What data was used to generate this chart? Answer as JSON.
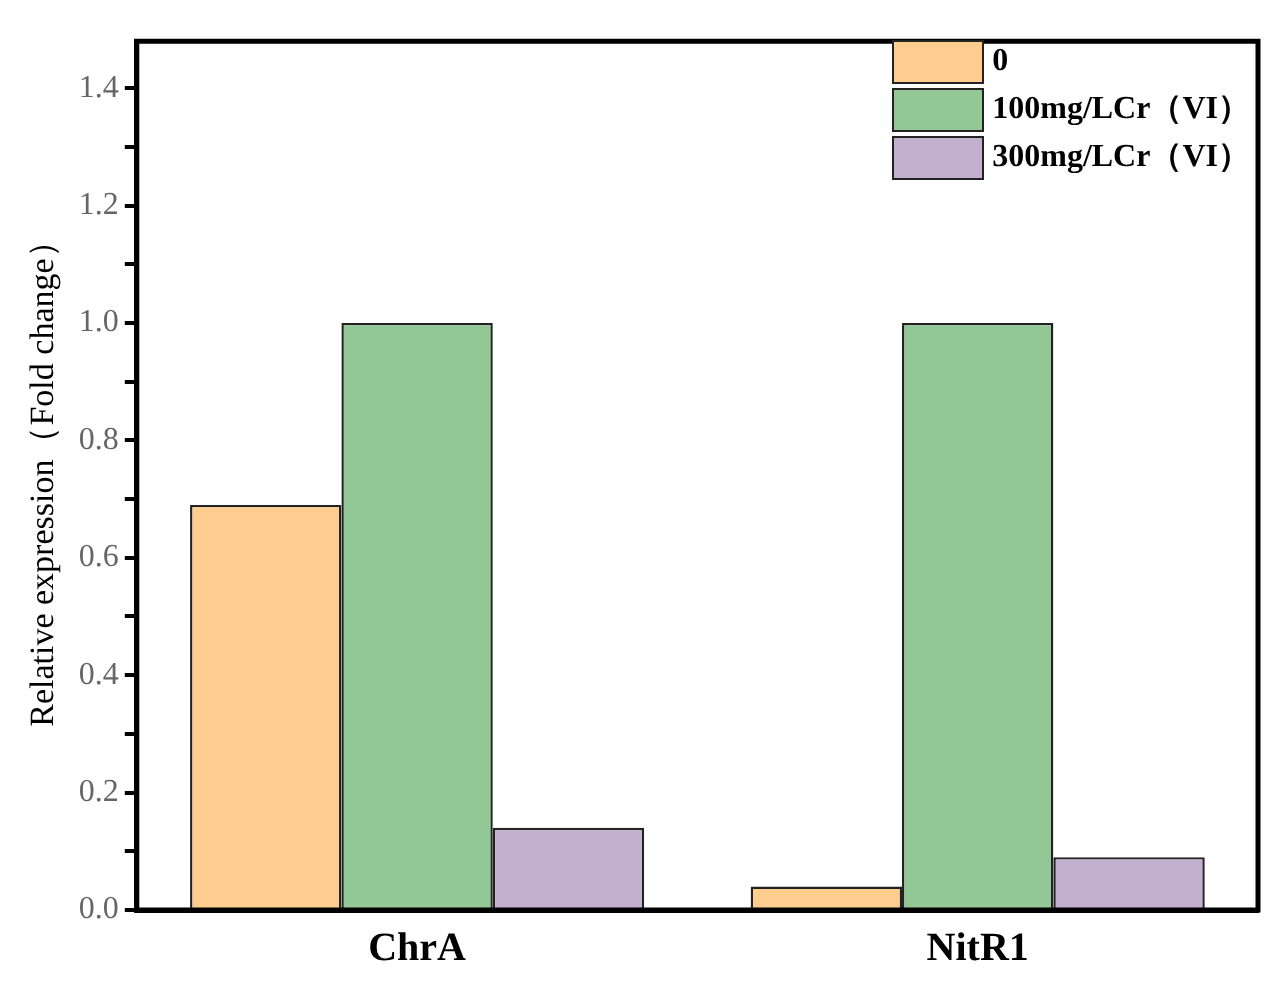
{
  "chart_data": {
    "type": "bar",
    "ylabel": "Relative expression（Fold change）",
    "categories": [
      "ChrA",
      "NitR1"
    ],
    "series": [
      {
        "name": "0",
        "color": "#fdcd8f",
        "values": [
          0.69,
          0.04
        ]
      },
      {
        "name": "100mg/LCr（VI）",
        "color": "#93c795",
        "values": [
          1.0,
          1.0
        ]
      },
      {
        "name": "300mg/LCr（VI）",
        "color": "#c3b0cf",
        "values": [
          0.14,
          0.09
        ]
      }
    ],
    "ylim": [
      0,
      1.48
    ],
    "yticks": [
      {
        "value": 0,
        "label": "0.0"
      },
      {
        "value": 0.1,
        "label": null
      },
      {
        "value": 0.2,
        "label": "0.2"
      },
      {
        "value": 0.3,
        "label": null
      },
      {
        "value": 0.4,
        "label": "0.4"
      },
      {
        "value": 0.5,
        "label": null
      },
      {
        "value": 0.6,
        "label": "0.6"
      },
      {
        "value": 0.7,
        "label": null
      },
      {
        "value": 0.8,
        "label": "0.8"
      },
      {
        "value": 0.9,
        "label": null
      },
      {
        "value": 1.0,
        "label": "1.0"
      },
      {
        "value": 1.1,
        "label": null
      },
      {
        "value": 1.2,
        "label": "1.2"
      },
      {
        "value": 1.3,
        "label": null
      },
      {
        "value": 1.4,
        "label": "1.4"
      }
    ],
    "grid": false,
    "legend": "top right"
  }
}
